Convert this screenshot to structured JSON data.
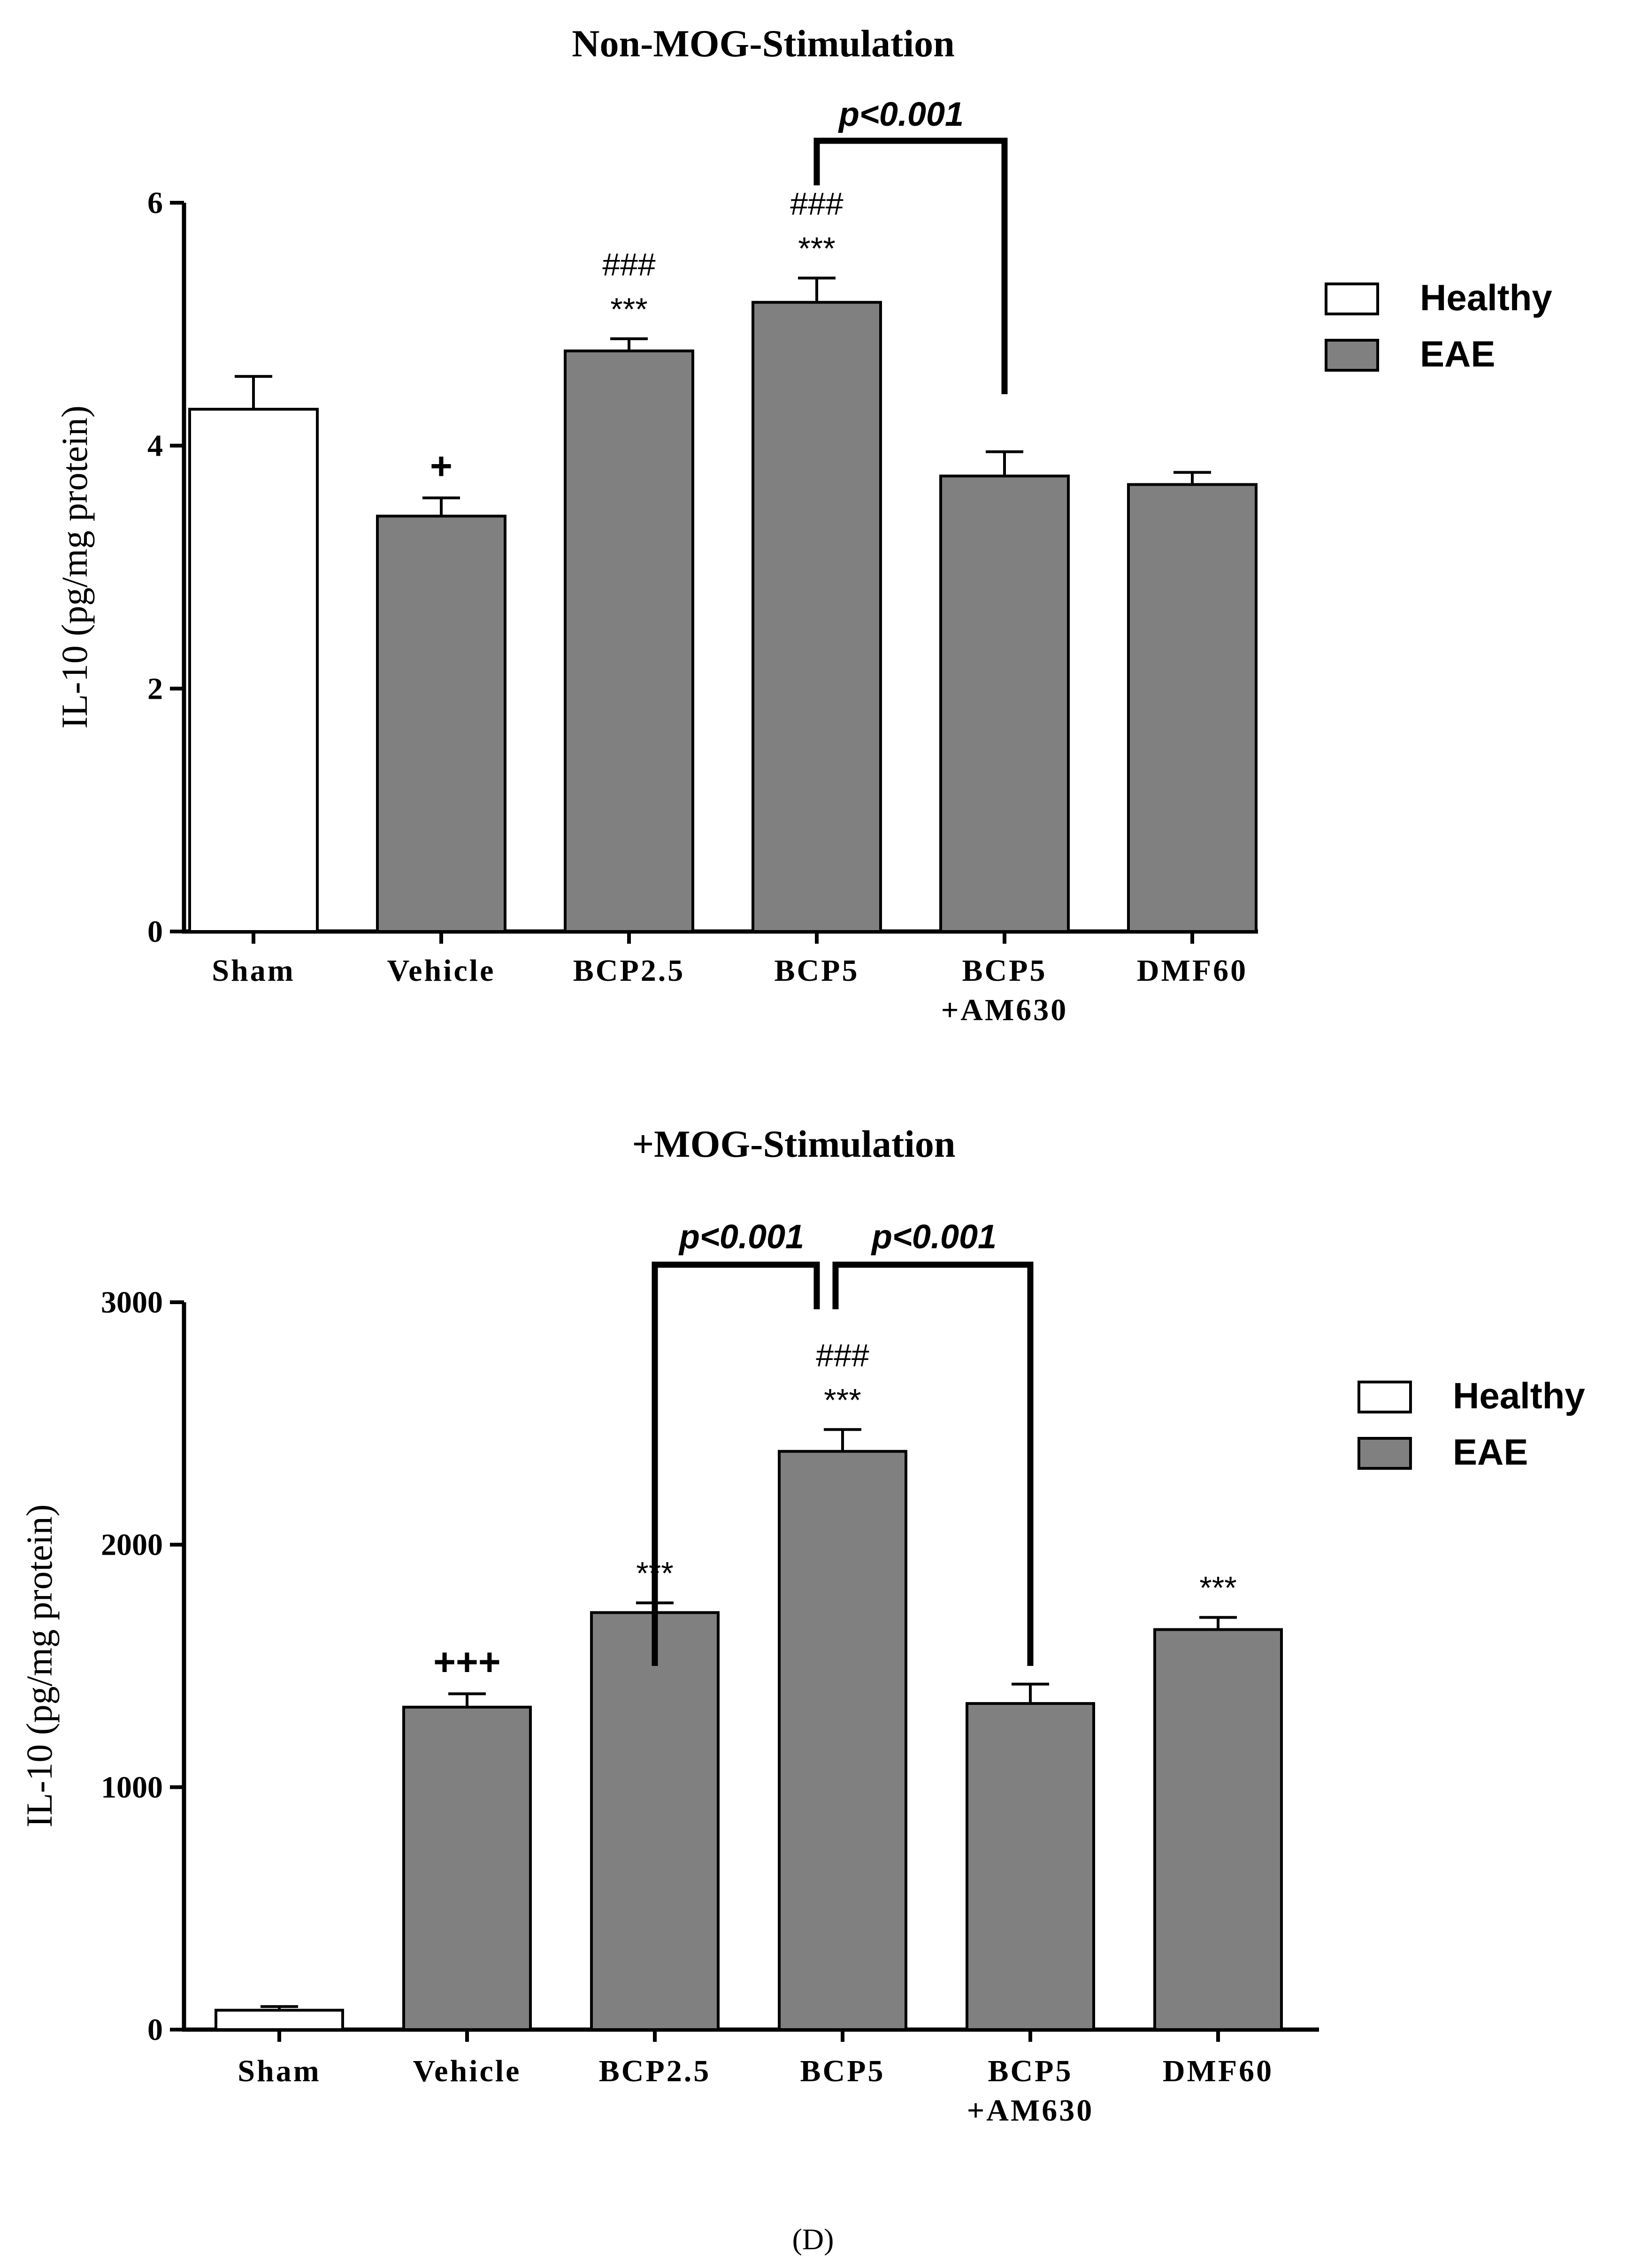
{
  "figure_label": "(D)",
  "chart_data": [
    {
      "type": "bar",
      "title": "Non-MOG-Stimulation",
      "xlabel": "",
      "ylabel": "IL-10 (pg/mg protein)",
      "ylim": [
        0,
        6
      ],
      "yticks": [
        0,
        2,
        4,
        6
      ],
      "categories": [
        "Sham",
        "Vehicle",
        "BCP2.5",
        "BCP5",
        "BCP5\n+AM630",
        "DMF60"
      ],
      "values": [
        4.3,
        3.42,
        4.78,
        5.18,
        3.75,
        3.68
      ],
      "errors": [
        0.27,
        0.15,
        0.1,
        0.2,
        0.2,
        0.1
      ],
      "groups": [
        "Healthy",
        "EAE",
        "EAE",
        "EAE",
        "EAE",
        "EAE"
      ],
      "annotations": [
        {
          "category": "Vehicle",
          "lines": [
            "+"
          ]
        },
        {
          "category": "BCP2.5",
          "lines": [
            "###",
            "***"
          ]
        },
        {
          "category": "BCP5",
          "lines": [
            "###",
            "***"
          ]
        }
      ],
      "brackets": [
        {
          "from": "BCP5",
          "to": "BCP5\n+AM630",
          "label": "p<0.001"
        }
      ],
      "legend": {
        "position": "top-right",
        "items": [
          {
            "label": "Healthy",
            "color": "#ffffff"
          },
          {
            "label": "EAE",
            "color": "#808080"
          }
        ]
      }
    },
    {
      "type": "bar",
      "title": "+MOG-Stimulation",
      "xlabel": "",
      "ylabel": "IL-10 (pg/mg protein)",
      "ylim": [
        0,
        3000
      ],
      "yticks": [
        0,
        1000,
        2000,
        3000
      ],
      "categories": [
        "Sham",
        "Vehicle",
        "BCP2.5",
        "BCP5",
        "BCP5\n+AM630",
        "DMF60"
      ],
      "values": [
        80,
        1330,
        1720,
        2385,
        1345,
        1650
      ],
      "errors": [
        15,
        55,
        40,
        90,
        80,
        50
      ],
      "groups": [
        "Healthy",
        "EAE",
        "EAE",
        "EAE",
        "EAE",
        "EAE"
      ],
      "annotations": [
        {
          "category": "Vehicle",
          "lines": [
            "+++"
          ]
        },
        {
          "category": "BCP2.5",
          "lines": [
            "***"
          ]
        },
        {
          "category": "BCP5",
          "lines": [
            "###",
            "***"
          ]
        },
        {
          "category": "DMF60",
          "lines": [
            "***"
          ]
        }
      ],
      "brackets": [
        {
          "from": "BCP2.5",
          "to": "BCP5",
          "label": "p<0.001"
        },
        {
          "from": "BCP5",
          "to": "BCP5\n+AM630",
          "label": "p<0.001"
        }
      ],
      "legend": {
        "position": "top-right",
        "items": [
          {
            "label": "Healthy",
            "color": "#ffffff"
          },
          {
            "label": "EAE",
            "color": "#808080"
          }
        ]
      }
    }
  ]
}
